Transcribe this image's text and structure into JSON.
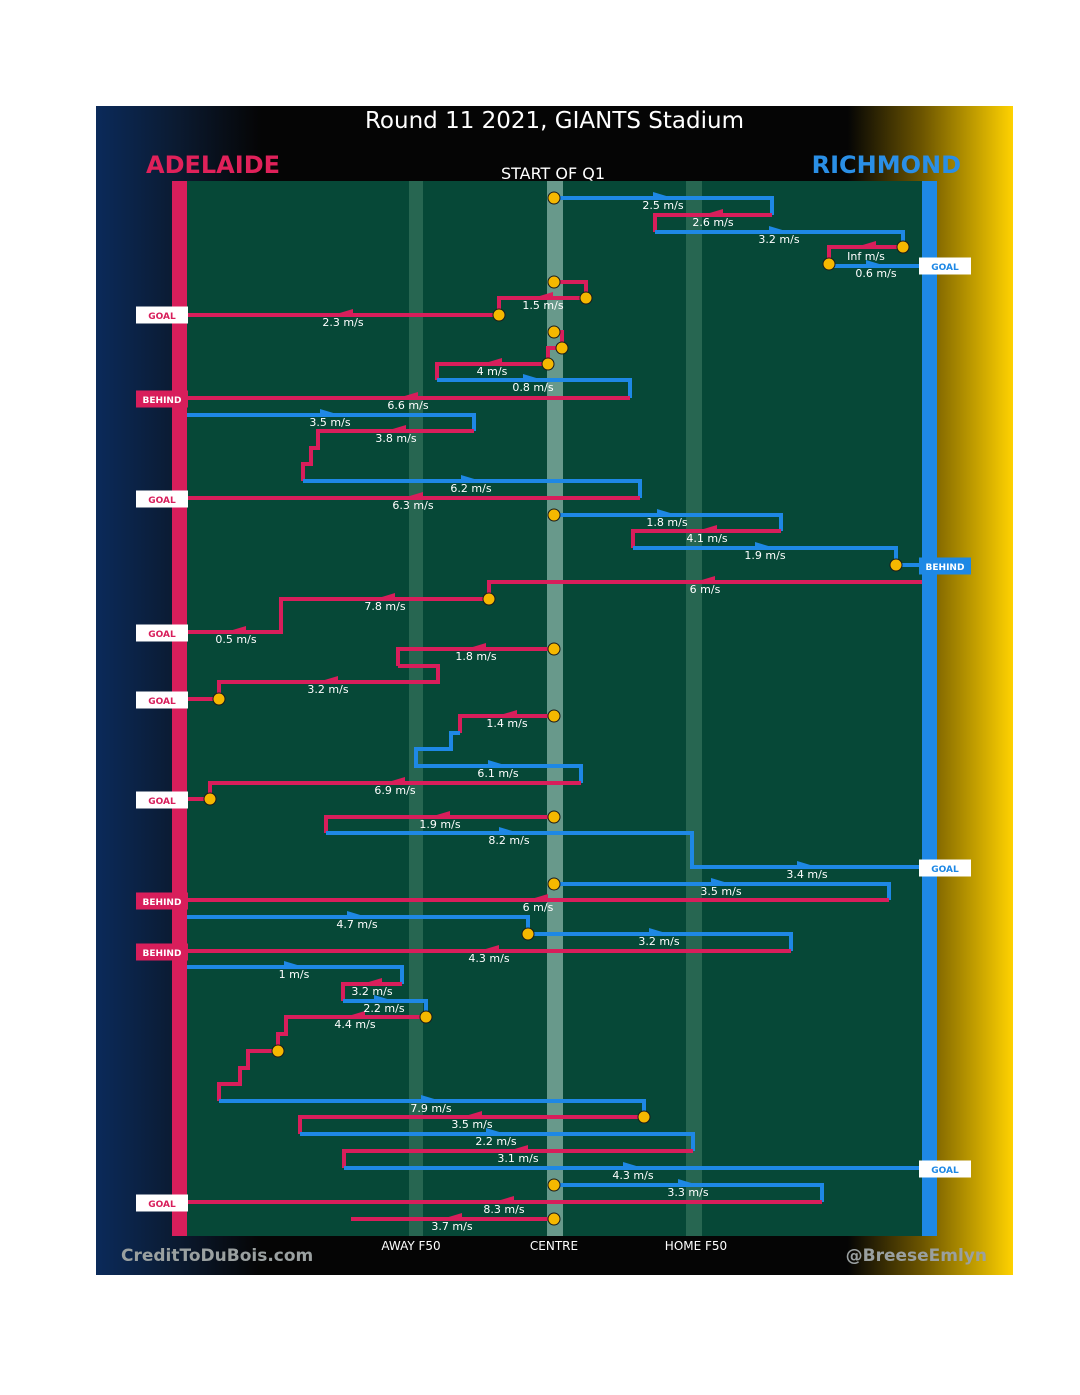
{
  "title": "Round 11 2021, GIANTS Stadium",
  "teams": {
    "left": "ADELAIDE",
    "right": "RICHMOND"
  },
  "start_label": "START OF Q1",
  "credits": {
    "left": "CreditToDuBois.com",
    "right": "@BreeseEmlyn"
  },
  "colors": {
    "adelaide": "#d81e5b",
    "richmond": "#1e88e5",
    "field": "#064837",
    "marker": "#f5b800"
  },
  "chart_data": {
    "type": "line",
    "x_axis_labels": [
      "AWAY F50",
      "CENTRE",
      "HOME F50"
    ],
    "outcome_labels": {
      "goal": "GOAL",
      "behind": "BEHIND"
    },
    "chains": [
      {
        "team": "richmond",
        "speed": "2.5 m/s"
      },
      {
        "team": "adelaide",
        "speed": "2.6 m/s"
      },
      {
        "team": "richmond",
        "speed": "3.2 m/s"
      },
      {
        "team": "adelaide",
        "speed": "Inf m/s"
      },
      {
        "team": "richmond",
        "speed": "0.6 m/s",
        "outcome": "GOAL"
      },
      {
        "team": "adelaide",
        "speed": "1.5 m/s"
      },
      {
        "team": "adelaide",
        "speed": "2.3 m/s",
        "outcome": "GOAL"
      },
      {
        "team": "adelaide",
        "speed": "4 m/s"
      },
      {
        "team": "richmond",
        "speed": "0.8 m/s"
      },
      {
        "team": "adelaide",
        "speed": "6.6 m/s",
        "outcome": "BEHIND"
      },
      {
        "team": "richmond",
        "speed": "3.5 m/s"
      },
      {
        "team": "adelaide",
        "speed": "3.8 m/s"
      },
      {
        "team": "richmond",
        "speed": "6.2 m/s"
      },
      {
        "team": "adelaide",
        "speed": "6.3 m/s",
        "outcome": "GOAL"
      },
      {
        "team": "richmond",
        "speed": "1.8 m/s"
      },
      {
        "team": "adelaide",
        "speed": "4.1 m/s"
      },
      {
        "team": "richmond",
        "speed": "1.9 m/s",
        "outcome": "BEHIND"
      },
      {
        "team": "adelaide",
        "speed": "6 m/s"
      },
      {
        "team": "adelaide",
        "speed": "7.8 m/s"
      },
      {
        "team": "adelaide",
        "speed": "0.5 m/s",
        "outcome": "GOAL"
      },
      {
        "team": "adelaide",
        "speed": "1.8 m/s"
      },
      {
        "team": "adelaide",
        "speed": "3.2 m/s",
        "outcome": "GOAL"
      },
      {
        "team": "adelaide",
        "speed": "1.4 m/s"
      },
      {
        "team": "richmond",
        "speed": "6.1 m/s"
      },
      {
        "team": "adelaide",
        "speed": "6.9 m/s",
        "outcome": "GOAL"
      },
      {
        "team": "adelaide",
        "speed": "1.9 m/s"
      },
      {
        "team": "richmond",
        "speed": "8.2 m/s"
      },
      {
        "team": "richmond",
        "speed": "3.4 m/s",
        "outcome": "GOAL"
      },
      {
        "team": "richmond",
        "speed": "3.5 m/s"
      },
      {
        "team": "adelaide",
        "speed": "6 m/s",
        "outcome": "BEHIND"
      },
      {
        "team": "richmond",
        "speed": "4.7 m/s"
      },
      {
        "team": "richmond",
        "speed": "3.2 m/s"
      },
      {
        "team": "adelaide",
        "speed": "4.3 m/s",
        "outcome": "BEHIND"
      },
      {
        "team": "richmond",
        "speed": "1 m/s"
      },
      {
        "team": "adelaide",
        "speed": "3.2 m/s"
      },
      {
        "team": "richmond",
        "speed": "2.2 m/s"
      },
      {
        "team": "adelaide",
        "speed": "4.4 m/s"
      },
      {
        "team": "richmond",
        "speed": "7.9 m/s"
      },
      {
        "team": "adelaide",
        "speed": "3.5 m/s"
      },
      {
        "team": "richmond",
        "speed": "2.2 m/s"
      },
      {
        "team": "adelaide",
        "speed": "3.1 m/s"
      },
      {
        "team": "richmond",
        "speed": "4.3 m/s",
        "outcome": "GOAL"
      },
      {
        "team": "richmond",
        "speed": "3.3 m/s"
      },
      {
        "team": "adelaide",
        "speed": "8.3 m/s",
        "outcome": "GOAL"
      },
      {
        "team": "adelaide",
        "speed": "3.7 m/s"
      }
    ]
  }
}
